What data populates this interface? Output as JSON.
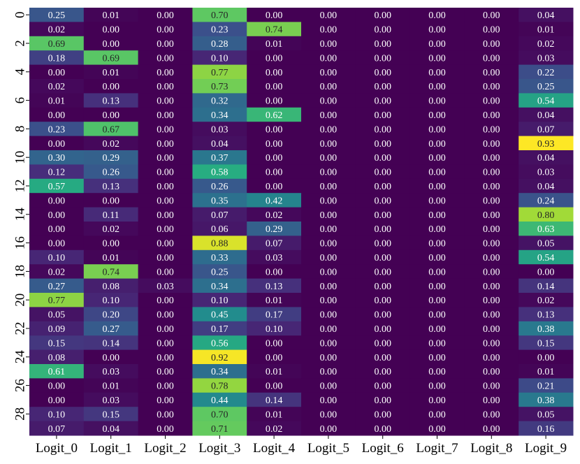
{
  "chart_data": {
    "type": "heatmap",
    "title": "",
    "xlabel": "",
    "ylabel": "",
    "columns": [
      "Logit_0",
      "Logit_1",
      "Logit_2",
      "Logit_3",
      "Logit_4",
      "Logit_5",
      "Logit_6",
      "Logit_7",
      "Logit_8",
      "Logit_9"
    ],
    "row_tick_labels": [
      "0",
      "2",
      "4",
      "6",
      "8",
      "10",
      "12",
      "14",
      "16",
      "18",
      "20",
      "22",
      "24",
      "26",
      "28"
    ],
    "value_range": [
      0,
      0.93
    ],
    "colormap": "viridis",
    "cell_labels_format": "0.00",
    "values": [
      [
        0.25,
        0.01,
        0.0,
        0.7,
        0.0,
        0.0,
        0.0,
        0.0,
        0.0,
        0.04
      ],
      [
        0.02,
        0.0,
        0.0,
        0.23,
        0.74,
        0.0,
        0.0,
        0.0,
        0.0,
        0.01
      ],
      [
        0.69,
        0.0,
        0.0,
        0.28,
        0.01,
        0.0,
        0.0,
        0.0,
        0.0,
        0.02
      ],
      [
        0.18,
        0.69,
        0.0,
        0.1,
        0.0,
        0.0,
        0.0,
        0.0,
        0.0,
        0.03
      ],
      [
        0.0,
        0.01,
        0.0,
        0.77,
        0.0,
        0.0,
        0.0,
        0.0,
        0.0,
        0.22
      ],
      [
        0.02,
        0.0,
        0.0,
        0.73,
        0.0,
        0.0,
        0.0,
        0.0,
        0.0,
        0.25
      ],
      [
        0.01,
        0.13,
        0.0,
        0.32,
        0.0,
        0.0,
        0.0,
        0.0,
        0.0,
        0.54
      ],
      [
        0.0,
        0.0,
        0.0,
        0.34,
        0.62,
        0.0,
        0.0,
        0.0,
        0.0,
        0.04
      ],
      [
        0.23,
        0.67,
        0.0,
        0.03,
        0.0,
        0.0,
        0.0,
        0.0,
        0.0,
        0.07
      ],
      [
        0.0,
        0.02,
        0.0,
        0.04,
        0.0,
        0.0,
        0.0,
        0.0,
        0.0,
        0.93
      ],
      [
        0.3,
        0.29,
        0.0,
        0.37,
        0.0,
        0.0,
        0.0,
        0.0,
        0.0,
        0.04
      ],
      [
        0.12,
        0.26,
        0.0,
        0.58,
        0.0,
        0.0,
        0.0,
        0.0,
        0.0,
        0.03
      ],
      [
        0.57,
        0.13,
        0.0,
        0.26,
        0.0,
        0.0,
        0.0,
        0.0,
        0.0,
        0.04
      ],
      [
        0.0,
        0.0,
        0.0,
        0.35,
        0.42,
        0.0,
        0.0,
        0.0,
        0.0,
        0.24
      ],
      [
        0.0,
        0.11,
        0.0,
        0.07,
        0.02,
        0.0,
        0.0,
        0.0,
        0.0,
        0.8
      ],
      [
        0.0,
        0.02,
        0.0,
        0.06,
        0.29,
        0.0,
        0.0,
        0.0,
        0.0,
        0.63
      ],
      [
        0.0,
        0.0,
        0.0,
        0.88,
        0.07,
        0.0,
        0.0,
        0.0,
        0.0,
        0.05
      ],
      [
        0.1,
        0.01,
        0.0,
        0.33,
        0.03,
        0.0,
        0.0,
        0.0,
        0.0,
        0.54
      ],
      [
        0.02,
        0.74,
        0.0,
        0.25,
        0.0,
        0.0,
        0.0,
        0.0,
        0.0,
        0.0
      ],
      [
        0.27,
        0.08,
        0.03,
        0.34,
        0.13,
        0.0,
        0.0,
        0.0,
        0.0,
        0.14
      ],
      [
        0.77,
        0.1,
        0.0,
        0.1,
        0.01,
        0.0,
        0.0,
        0.0,
        0.0,
        0.02
      ],
      [
        0.05,
        0.2,
        0.0,
        0.45,
        0.17,
        0.0,
        0.0,
        0.0,
        0.0,
        0.13
      ],
      [
        0.09,
        0.27,
        0.0,
        0.17,
        0.1,
        0.0,
        0.0,
        0.0,
        0.0,
        0.38
      ],
      [
        0.15,
        0.14,
        0.0,
        0.56,
        0.0,
        0.0,
        0.0,
        0.0,
        0.0,
        0.15
      ],
      [
        0.08,
        0.0,
        0.0,
        0.92,
        0.0,
        0.0,
        0.0,
        0.0,
        0.0,
        0.0
      ],
      [
        0.61,
        0.03,
        0.0,
        0.34,
        0.01,
        0.0,
        0.0,
        0.0,
        0.0,
        0.01
      ],
      [
        0.0,
        0.01,
        0.0,
        0.78,
        0.0,
        0.0,
        0.0,
        0.0,
        0.0,
        0.21
      ],
      [
        0.0,
        0.03,
        0.0,
        0.44,
        0.14,
        0.0,
        0.0,
        0.0,
        0.0,
        0.38
      ],
      [
        0.1,
        0.15,
        0.0,
        0.7,
        0.01,
        0.0,
        0.0,
        0.0,
        0.0,
        0.05
      ],
      [
        0.07,
        0.04,
        0.0,
        0.71,
        0.02,
        0.0,
        0.0,
        0.0,
        0.0,
        0.16
      ]
    ]
  }
}
